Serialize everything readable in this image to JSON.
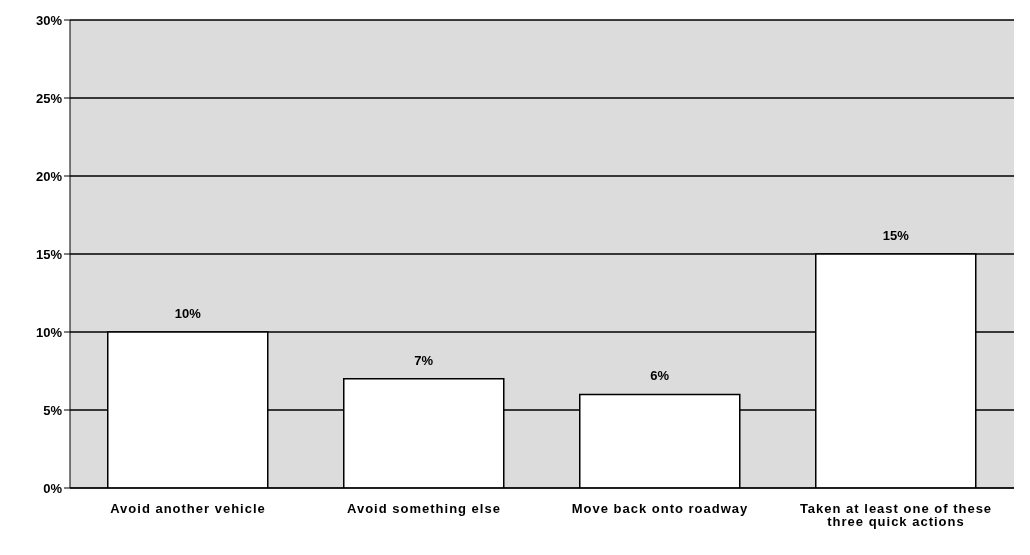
{
  "chart_data": {
    "type": "bar",
    "categories": [
      "Avoid another vehicle",
      "Avoid something else",
      "Move back onto roadway",
      "Taken at least one of these three quick actions"
    ],
    "values": [
      10,
      7,
      6,
      15
    ],
    "color": "#ffffff",
    "value_labels": [
      "10%",
      "7%",
      "6%",
      "15%"
    ],
    "ylim": [
      0,
      30
    ],
    "yticks": [
      {
        "value": 0,
        "label": "0%"
      },
      {
        "value": 5,
        "label": "5%"
      },
      {
        "value": 10,
        "label": "10%"
      },
      {
        "value": 15,
        "label": "15%"
      },
      {
        "value": 20,
        "label": "20%"
      },
      {
        "value": 25,
        "label": "25%"
      },
      {
        "value": 30,
        "label": "30%"
      }
    ],
    "grid": "y"
  }
}
